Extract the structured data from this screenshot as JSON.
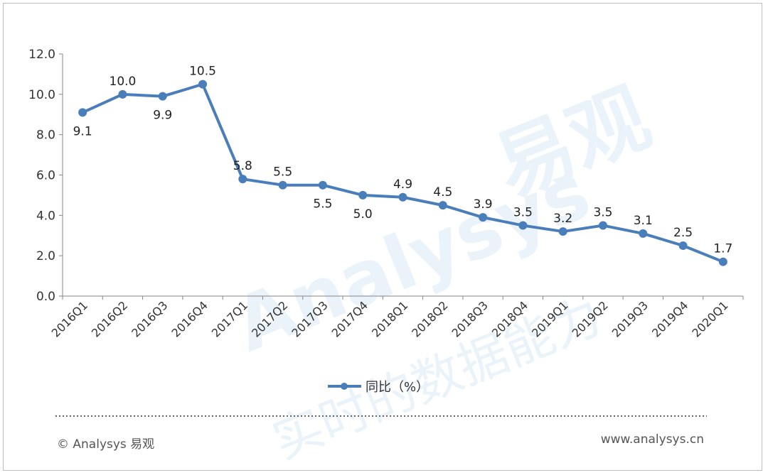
{
  "chart_data": {
    "type": "line",
    "categories": [
      "2016Q1",
      "2016Q2",
      "2016Q3",
      "2016Q4",
      "2017Q1",
      "2017Q2",
      "2017Q3",
      "2017Q4",
      "2018Q1",
      "2018Q2",
      "2018Q3",
      "2018Q4",
      "2019Q1",
      "2019Q2",
      "2019Q3",
      "2019Q4",
      "2020Q1"
    ],
    "series": [
      {
        "name": "同比（%）",
        "values": [
          9.1,
          10.0,
          9.9,
          10.5,
          5.8,
          5.5,
          5.5,
          5.0,
          4.9,
          4.5,
          3.9,
          3.5,
          3.2,
          3.5,
          3.1,
          2.5,
          1.7
        ],
        "data_labels": [
          "9.1",
          "10.0",
          "9.9",
          "10.5",
          "5.8",
          "5.5",
          "5.5",
          "5.0",
          "4.9",
          "4.5",
          "3.9",
          "3.5",
          "3.2",
          "3.5",
          "3.1",
          "2.5",
          "1.7"
        ],
        "label_position": [
          "below",
          "above",
          "below",
          "above",
          "above",
          "above",
          "below",
          "below",
          "above",
          "above",
          "above",
          "above",
          "above",
          "above",
          "above",
          "above",
          "above"
        ]
      }
    ],
    "y_ticks": [
      "0.0",
      "2.0",
      "4.0",
      "6.0",
      "8.0",
      "10.0",
      "12.0"
    ],
    "ylim": [
      0,
      12
    ],
    "grid": false,
    "legend_position": "bottom",
    "line_color": "#4a7ebb"
  },
  "watermark": {
    "brand_latin": "Analysys",
    "brand_cjk": "易观",
    "slogan": "实时的数据能力"
  },
  "footer": {
    "copyright": "© Analysys 易观",
    "website": "www.analysys.cn"
  }
}
